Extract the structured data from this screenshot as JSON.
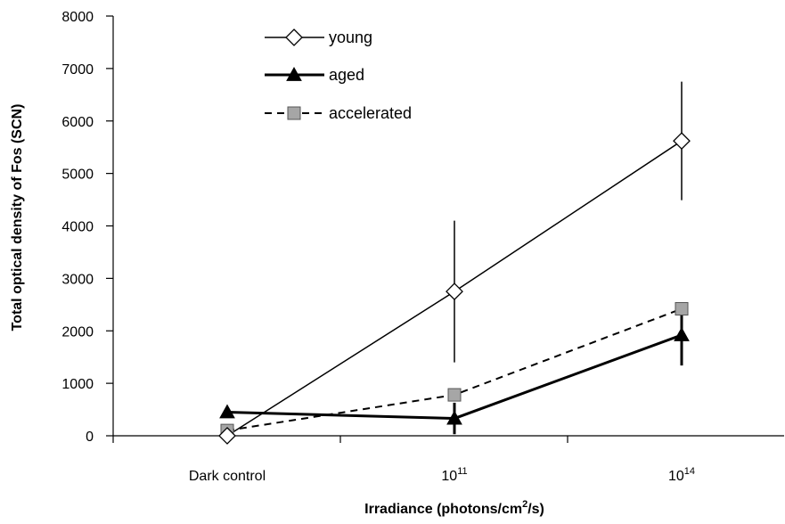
{
  "chart_data": {
    "type": "line",
    "categories": [
      "Dark control",
      "10^11",
      "10^14"
    ],
    "category_labels": [
      {
        "base": "Dark control",
        "sup": ""
      },
      {
        "base": "10",
        "sup": "11"
      },
      {
        "base": "10",
        "sup": "14"
      }
    ],
    "ylabel": "Total optical density of Fos (SCN)",
    "xlabel": {
      "pre": "Irradiance (photons/cm",
      "sup": "2",
      "post": "/s)"
    },
    "ylim": [
      0,
      8000
    ],
    "yticks": [
      0,
      1000,
      2000,
      3000,
      4000,
      5000,
      6000,
      7000,
      8000
    ],
    "legend_position": "top-center",
    "series": [
      {
        "name": "young",
        "marker": "diamond-open",
        "line": "solid",
        "color": "#000000",
        "fill": "#ffffff",
        "values": [
          0,
          2750,
          5620
        ],
        "error": [
          0,
          1350,
          1130
        ]
      },
      {
        "name": "aged",
        "marker": "triangle-filled",
        "line": "solid-thick",
        "color": "#000000",
        "fill": "#000000",
        "values": [
          450,
          330,
          1920
        ],
        "error": [
          0,
          300,
          580
        ]
      },
      {
        "name": "accelerated",
        "marker": "square-gray",
        "line": "dashed",
        "color": "#000000",
        "fill": "#a6a6a6",
        "values": [
          100,
          780,
          2420
        ],
        "error": [
          0,
          0,
          0
        ]
      }
    ]
  }
}
